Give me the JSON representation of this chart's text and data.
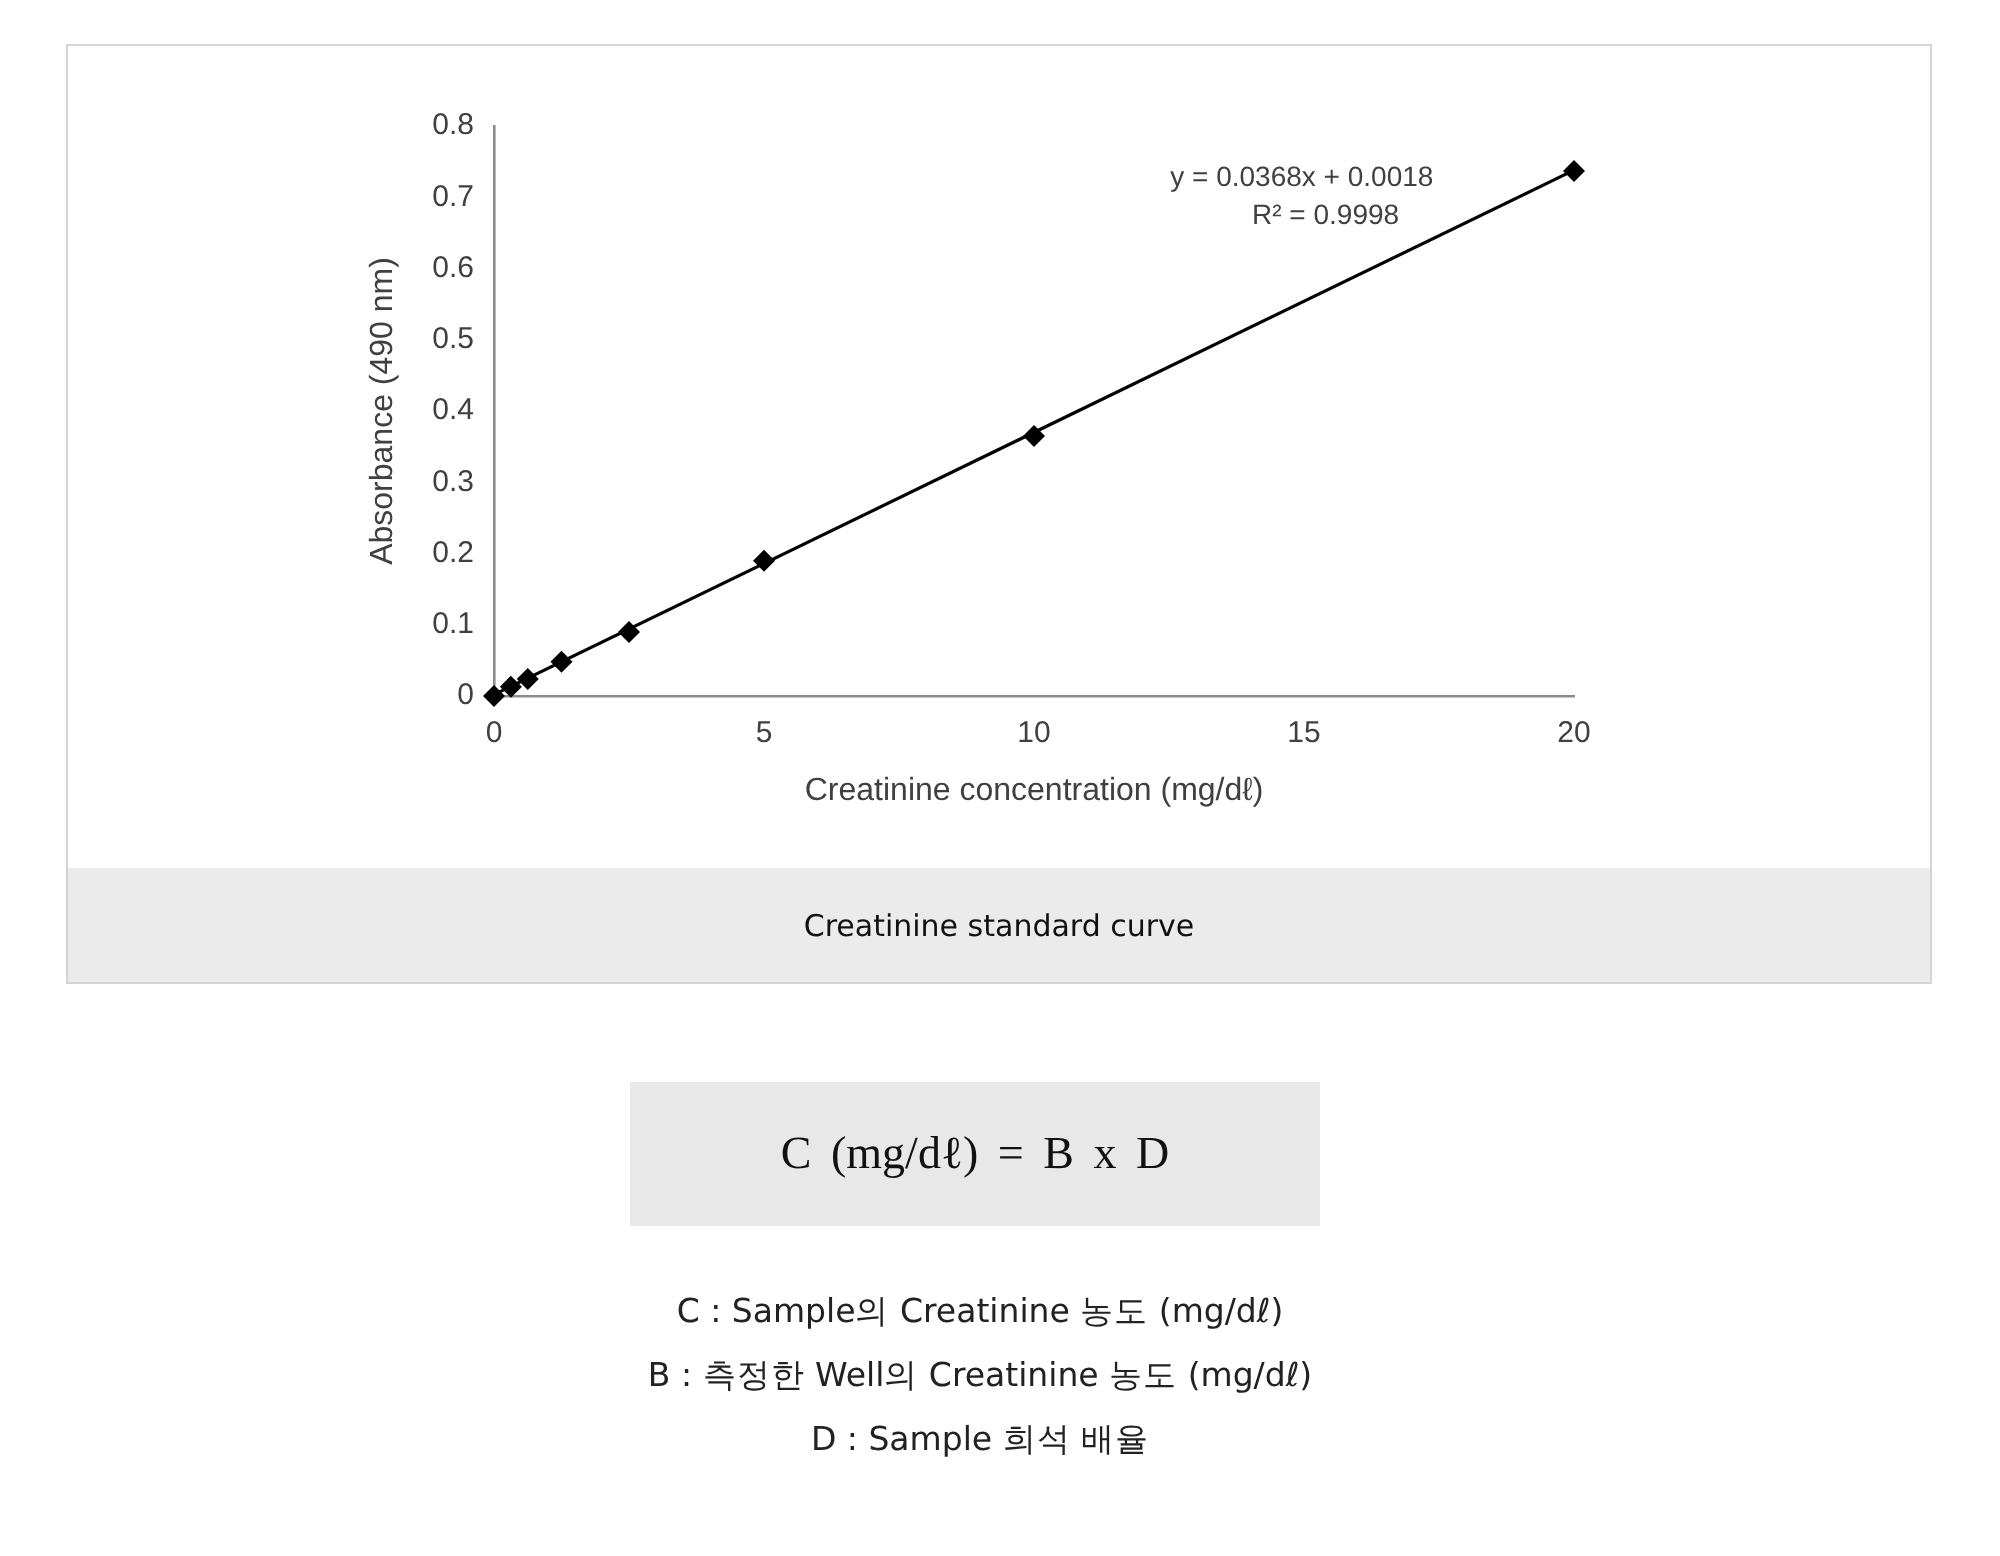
{
  "chart_data": {
    "type": "scatter",
    "title": "Creatinine standard curve",
    "xlabel": "Creatinine concentration (mg/dℓ)",
    "ylabel": "Absorbance (490 nm)",
    "annotations": [
      "y = 0.0368x + 0.0018",
      "R² = 0.9998",
      "C (mg/dℓ) = B x D",
      "C : Sample의 Creatinine 농도 (mg/dℓ)",
      "B : 측정한 Well의 Creatinine 농도 (mg/dℓ)",
      "D : Sample 희석 배율"
    ],
    "series": [
      {
        "color": "#000000",
        "marker": "diamond",
        "x": [
          0,
          0.3125,
          0.625,
          1.25,
          2.5,
          5,
          10,
          20
        ],
        "values": [
          0,
          0.013,
          0.024,
          0.048,
          0.09,
          0.19,
          0.365,
          0.737
        ]
      },
      {
        "type": "line",
        "color": "#000000",
        "marker": "none",
        "x": [
          0,
          20
        ],
        "values": [
          0.002,
          0.738
        ]
      }
    ],
    "xlim": [
      0,
      20
    ],
    "xticks": [
      0,
      5,
      10,
      15,
      20
    ],
    "ylim": [
      0,
      0.8
    ],
    "yticks": [
      0,
      0.1,
      0.2,
      0.3,
      0.4,
      0.5,
      0.6,
      0.7,
      0.8
    ]
  }
}
